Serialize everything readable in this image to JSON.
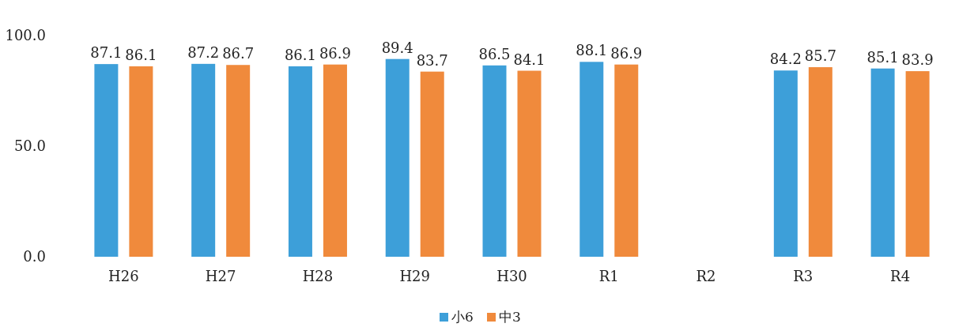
{
  "chart_data": {
    "type": "bar",
    "categories": [
      "H26",
      "H27",
      "H28",
      "H29",
      "H30",
      "R1",
      "R2",
      "R3",
      "R4"
    ],
    "series": [
      {
        "name": "小6",
        "color": "#3d9fd9",
        "values": [
          87.1,
          87.2,
          86.1,
          89.4,
          86.5,
          88.1,
          null,
          84.2,
          85.1
        ]
      },
      {
        "name": "中3",
        "color": "#f08a3c",
        "values": [
          86.1,
          86.7,
          86.9,
          83.7,
          84.1,
          86.9,
          null,
          85.7,
          83.9
        ]
      }
    ],
    "ylim": [
      0,
      100
    ],
    "yticks": [
      {
        "value": 0,
        "label": "0.0"
      },
      {
        "value": 50,
        "label": "50.0"
      },
      {
        "value": 100,
        "label": "100.0"
      }
    ],
    "data_labels": true,
    "grid": false,
    "legend": "bottom"
  }
}
